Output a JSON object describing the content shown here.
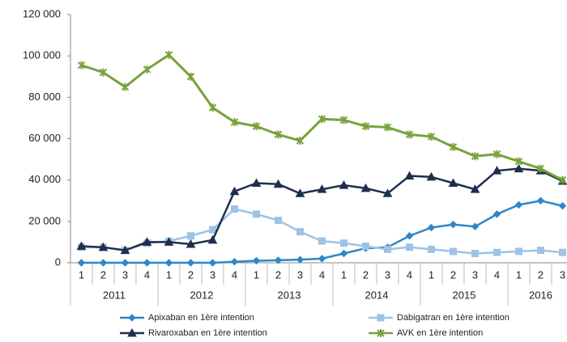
{
  "chart_data": {
    "type": "line",
    "categories": [
      "1",
      "2",
      "3",
      "4",
      "1",
      "2",
      "3",
      "4",
      "1",
      "2",
      "3",
      "4",
      "1",
      "2",
      "3",
      "4",
      "1",
      "2",
      "3",
      "4",
      "1",
      "2",
      "3"
    ],
    "year_groups": [
      "2011",
      "2012",
      "2013",
      "2014",
      "2015",
      "2016"
    ],
    "ylim": [
      0,
      120000
    ],
    "yticks": [
      0,
      {
        "value": 20000,
        "label": "20 000"
      },
      {
        "value": 40000,
        "label": "40 000"
      },
      {
        "value": 60000,
        "label": "60 000"
      },
      {
        "value": 80000,
        "label": "80 000"
      },
      {
        "value": 100000,
        "label": "100 000"
      },
      {
        "value": 120000,
        "label": "120 000"
      }
    ],
    "grid": false,
    "series": [
      {
        "name": "Apixaban en 1ère intention",
        "color": "#2e86c8",
        "marker": "diamond",
        "values": [
          0,
          0,
          0,
          0,
          0,
          0,
          0,
          500,
          1000,
          1200,
          1500,
          2000,
          4500,
          7000,
          7500,
          13000,
          17000,
          18500,
          17500,
          23500,
          28000,
          30000,
          27500
        ]
      },
      {
        "name": "Dabigatran en 1ère intention",
        "color": "#9dc3e6",
        "marker": "square",
        "values": [
          7500,
          7500,
          6000,
          9500,
          10500,
          13000,
          16000,
          26000,
          23500,
          20500,
          15000,
          10500,
          9500,
          8000,
          6500,
          7500,
          6500,
          5500,
          4500,
          5000,
          5500,
          6000,
          5000
        ]
      },
      {
        "name": "Rivaroxaban en 1ère intention",
        "color": "#1f2e4e",
        "marker": "triangle",
        "values": [
          8000,
          7500,
          6000,
          10000,
          10000,
          9000,
          11000,
          34500,
          38500,
          38000,
          33500,
          35500,
          37500,
          36000,
          33500,
          42000,
          41500,
          38500,
          35500,
          44500,
          45500,
          44500,
          39500
        ]
      },
      {
        "name": "AVK en 1ère intention",
        "color": "#77a33a",
        "marker": "star",
        "values": [
          95500,
          92000,
          85000,
          93500,
          100500,
          90000,
          75000,
          68000,
          66000,
          62000,
          59000,
          69500,
          69000,
          66000,
          65500,
          62000,
          61000,
          56000,
          51500,
          52500,
          49000,
          45500,
          40000
        ]
      }
    ]
  }
}
